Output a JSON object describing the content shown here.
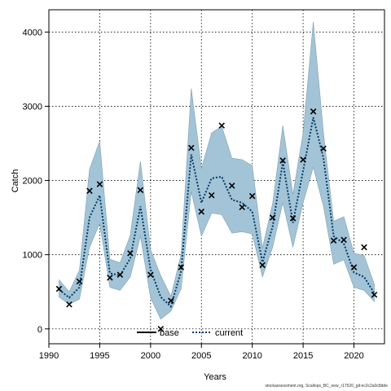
{
  "chart_data": {
    "type": "line",
    "xlabel": "Years",
    "ylabel": "Catch",
    "xlim": [
      1990,
      2023
    ],
    "ylim": [
      -200,
      4300
    ],
    "x_ticks": [
      1990,
      1995,
      2000,
      2005,
      2010,
      2015,
      2020
    ],
    "y_ticks": [
      0,
      1000,
      2000,
      3000,
      4000
    ],
    "grid": true,
    "legend": [
      "base",
      "current"
    ],
    "legend_position": "bottom-center",
    "x": [
      1991,
      1992,
      1993,
      1994,
      1995,
      1996,
      1997,
      1998,
      1999,
      2000,
      2001,
      2002,
      2003,
      2004,
      2005,
      2006,
      2007,
      2008,
      2009,
      2010,
      2011,
      2012,
      2013,
      2014,
      2015,
      2016,
      2017,
      2018,
      2019,
      2020,
      2021,
      2022
    ],
    "series": [
      {
        "name": "current",
        "style": "dotted",
        "color": "#003a6b",
        "values": [
          530,
          420,
          560,
          1500,
          1800,
          750,
          720,
          950,
          1650,
          800,
          430,
          300,
          780,
          2350,
          1700,
          2030,
          2050,
          1740,
          1700,
          1580,
          900,
          1380,
          2250,
          1430,
          2130,
          2850,
          2300,
          1250,
          1150,
          760,
          700,
          480
        ]
      }
    ],
    "ribbon": {
      "color": "#a3c4d6",
      "lower": [
        430,
        330,
        400,
        1100,
        1420,
        560,
        520,
        700,
        1250,
        420,
        130,
        240,
        540,
        1850,
        1250,
        1560,
        1540,
        1290,
        1310,
        1280,
        700,
        1100,
        1700,
        1100,
        1700,
        2180,
        1650,
        870,
        930,
        560,
        520,
        370
      ],
      "upper": [
        660,
        500,
        790,
        2150,
        2530,
        940,
        890,
        1260,
        2260,
        1070,
        720,
        440,
        1000,
        3240,
        2160,
        2640,
        2730,
        2300,
        2280,
        2200,
        1090,
        1690,
        2740,
        1810,
        2640,
        4140,
        2640,
        1450,
        1510,
        1020,
        990,
        600
      ]
    },
    "observed": {
      "marker": "x",
      "values": [
        540,
        330,
        640,
        1860,
        1950,
        690,
        730,
        1020,
        1870,
        730,
        0,
        380,
        830,
        2440,
        1580,
        1800,
        2740,
        1930,
        1640,
        1790,
        860,
        1500,
        2270,
        1490,
        2280,
        2930,
        2430,
        1190,
        1200,
        830,
        1100,
        460
      ]
    }
  },
  "footer": "stockassessment.org, Scallops_BC_new_r17520_git:ec2c2a0c8dde"
}
